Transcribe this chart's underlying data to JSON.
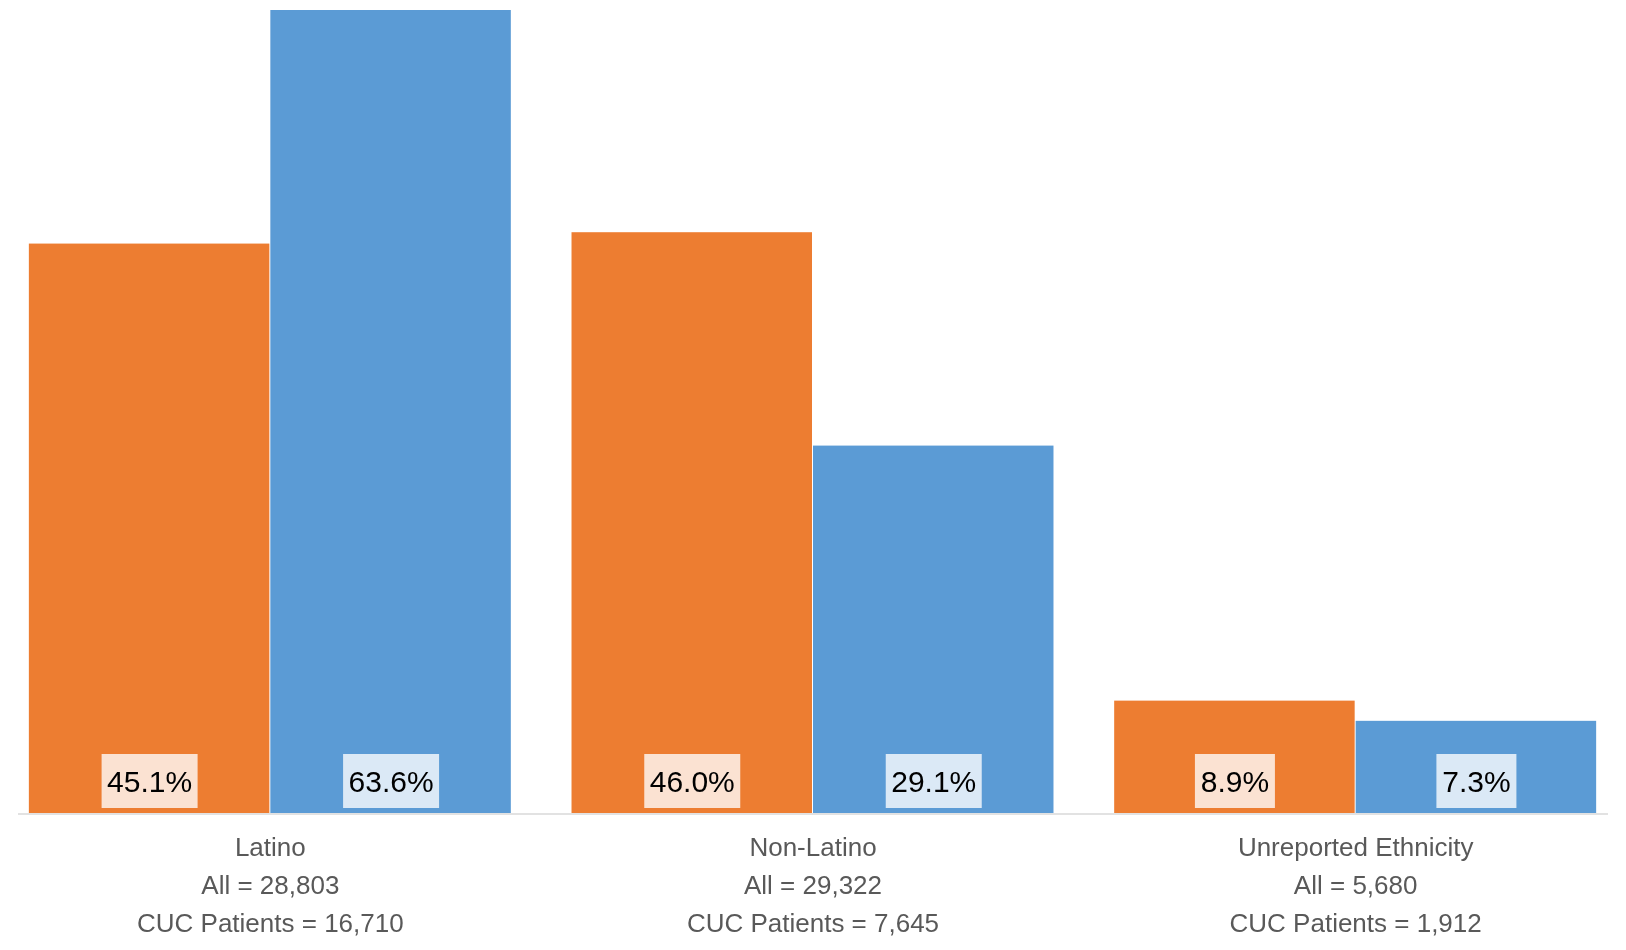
{
  "chart_data": {
    "type": "bar",
    "categories": [
      "Latino\nAll = 28,803\nCUC Patients = 16,710",
      "Non-Latino\nAll = 29,322\nCUC Patients = 7,645",
      "Unreported Ethnicity\nAll = 5,680\nCUC Patients = 1,912"
    ],
    "series": [
      {
        "color": "#ed7d31",
        "values": [
          45.1,
          46.0,
          8.9
        ],
        "value_labels": [
          "45.1%",
          "46.0%",
          "8.9%"
        ]
      },
      {
        "color": "#5b9bd5",
        "values": [
          63.6,
          29.1,
          7.3
        ],
        "value_labels": [
          "63.6%",
          "29.1%",
          "7.3%"
        ]
      }
    ]
  }
}
